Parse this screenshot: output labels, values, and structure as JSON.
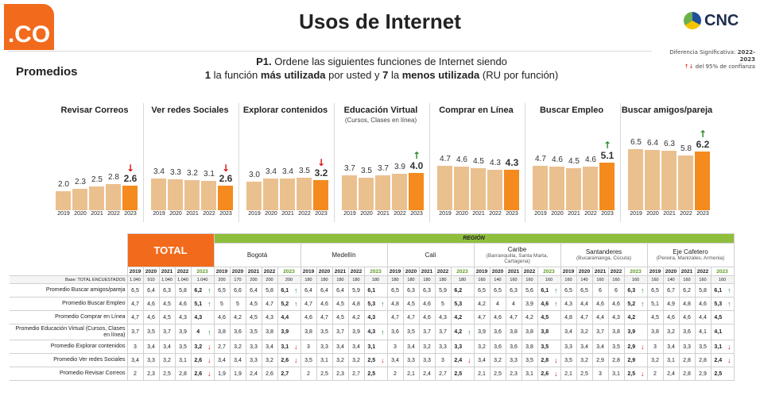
{
  "header": {
    "logo_text": ".CO",
    "title": "Usos de Internet",
    "brand": "CNC",
    "significance": {
      "line1": "Diferencia Significativa:",
      "years": "2022-2023",
      "arrows": "↑↓",
      "line2": "del 95% de confianza"
    },
    "subtitle": "Promedios",
    "question": {
      "num": "P1.",
      "q1": "Ordene las siguientes funciones de Internet siendo",
      "n1": "1",
      "t1": "la función",
      "b1": "más utilizada",
      "t2": "por usted y",
      "n7": "7",
      "t3": "la",
      "b2": "menos utilizada",
      "t4": "(RU por función)"
    }
  },
  "chart_data": {
    "type": "bar",
    "categories": [
      "2019",
      "2020",
      "2021",
      "2022",
      "2023"
    ],
    "panels": [
      {
        "title": "Revisar Correos",
        "subtitle": "",
        "values": [
          2.0,
          2.3,
          2.5,
          2.8,
          2.6
        ],
        "labels": [
          "2.0",
          "2.3",
          "2.5",
          "2.8",
          "2.6"
        ],
        "trend": "down"
      },
      {
        "title": "Ver redes Sociales",
        "subtitle": "",
        "values": [
          3.4,
          3.3,
          3.2,
          3.1,
          2.6
        ],
        "labels": [
          "3.4",
          "3.3",
          "3.2",
          "3.1",
          "2.6"
        ],
        "trend": "down"
      },
      {
        "title": "Explorar contenidos",
        "subtitle": "",
        "values": [
          3.0,
          3.4,
          3.4,
          3.5,
          3.2
        ],
        "labels": [
          "3.0",
          "3.4",
          "3.4",
          "3.5",
          "3.2"
        ],
        "trend": "down"
      },
      {
        "title": "Educación Virtual",
        "subtitle": "(Cursos, Clases en línea)",
        "values": [
          3.7,
          3.5,
          3.7,
          3.9,
          4.0
        ],
        "labels": [
          "3.7",
          "3.5",
          "3.7",
          "3.9",
          "4.0"
        ],
        "trend": "up"
      },
      {
        "title": "Comprar en Línea",
        "subtitle": "",
        "values": [
          4.7,
          4.6,
          4.5,
          4.3,
          4.3
        ],
        "labels": [
          "4.7",
          "4.6",
          "4.5",
          "4.3",
          "4.3"
        ],
        "trend": ""
      },
      {
        "title": "Buscar Empleo",
        "subtitle": "",
        "values": [
          4.7,
          4.6,
          4.5,
          4.6,
          5.1
        ],
        "labels": [
          "4.7",
          "4.6",
          "4.5",
          "4.6",
          "5.1"
        ],
        "trend": "up"
      },
      {
        "title": "Buscar amigos/pareja",
        "subtitle": "",
        "values": [
          6.5,
          6.4,
          6.3,
          5.8,
          6.2
        ],
        "labels": [
          "6.5",
          "6.4",
          "6.3",
          "5.8",
          "6.2"
        ],
        "trend": "up"
      }
    ],
    "ylim": [
      0,
      7
    ],
    "colors": {
      "past": "#ebc08f",
      "current": "#f58a1f"
    }
  },
  "table": {
    "total_label": "TOTAL",
    "region_label": "REGIÓN",
    "groups": [
      {
        "name": "Bogotá",
        "sub": ""
      },
      {
        "name": "Medellín",
        "sub": ""
      },
      {
        "name": "Cali",
        "sub": ""
      },
      {
        "name": "Caribe",
        "sub": "(Barranquilla, Santa Marta, Cartagena)"
      },
      {
        "name": "Santanderes",
        "sub": "(Bucaramanga, Cúcuta)"
      },
      {
        "name": "Eje Cafetero",
        "sub": "(Pereira, Manizales, Armenia)"
      }
    ],
    "years": [
      "2019",
      "2020",
      "2021",
      "2022",
      "2023"
    ],
    "base_label": "Base: TOTAL ENCUESTADOS",
    "base": [
      [
        "1.040",
        "910",
        "1.040",
        "1.040",
        "1.040"
      ],
      [
        "200",
        "170",
        "200",
        "200",
        "200"
      ],
      [
        "180",
        "180",
        "180",
        "180",
        "180"
      ],
      [
        "180",
        "180",
        "180",
        "180",
        "180"
      ],
      [
        "160",
        "140",
        "160",
        "160",
        "160"
      ],
      [
        "160",
        "140",
        "160",
        "160",
        "160"
      ],
      [
        "160",
        "140",
        "160",
        "160",
        "160"
      ]
    ],
    "rows": [
      {
        "label": "Promedio Buscar amigos/pareja",
        "cells": [
          {
            "v": [
              "6,5",
              "6,4",
              "6,3",
              "5,8",
              "6,2"
            ],
            "t": "up"
          },
          {
            "v": [
              "6,5",
              "6,6",
              "6,4",
              "5,8",
              "6,1"
            ],
            "t": "up"
          },
          {
            "v": [
              "6,4",
              "6,4",
              "6,4",
              "5,9",
              "6,1"
            ],
            "t": ""
          },
          {
            "v": [
              "6,5",
              "6,3",
              "6,3",
              "5,9",
              "6,2"
            ],
            "t": ""
          },
          {
            "v": [
              "6,5",
              "6,5",
              "6,3",
              "5,6",
              "6,1"
            ],
            "t": "up"
          },
          {
            "v": [
              "6,5",
              "6,5",
              "6",
              "6",
              "6,3"
            ],
            "t": "up"
          },
          {
            "v": [
              "6,5",
              "6,7",
              "6,2",
              "5,8",
              "6,1"
            ],
            "t": "up"
          }
        ]
      },
      {
        "label": "Promedio Buscar Empleo",
        "cells": [
          {
            "v": [
              "4,7",
              "4,6",
              "4,5",
              "4,6",
              "5,1"
            ],
            "t": "up"
          },
          {
            "v": [
              "5",
              "5",
              "4,5",
              "4,7",
              "5,2"
            ],
            "t": "up"
          },
          {
            "v": [
              "4,7",
              "4,6",
              "4,5",
              "4,8",
              "5,3"
            ],
            "t": "up"
          },
          {
            "v": [
              "4,8",
              "4,5",
              "4,6",
              "5",
              "5,3"
            ],
            "t": ""
          },
          {
            "v": [
              "4,2",
              "4",
              "4",
              "3,9",
              "4,6"
            ],
            "t": "up"
          },
          {
            "v": [
              "4,3",
              "4,4",
              "4,6",
              "4,6",
              "5,2"
            ],
            "t": "up"
          },
          {
            "v": [
              "5,1",
              "4,9",
              "4,8",
              "4,6",
              "5,3"
            ],
            "t": "up"
          }
        ]
      },
      {
        "label": "Promedio Comprar en Línea",
        "cells": [
          {
            "v": [
              "4,7",
              "4,6",
              "4,5",
              "4,3",
              "4,3"
            ],
            "t": ""
          },
          {
            "v": [
              "4,6",
              "4,2",
              "4,5",
              "4,3",
              "4,4"
            ],
            "t": ""
          },
          {
            "v": [
              "4,6",
              "4,7",
              "4,5",
              "4,2",
              "4,3"
            ],
            "t": ""
          },
          {
            "v": [
              "4,7",
              "4,7",
              "4,6",
              "4,3",
              "4,2"
            ],
            "t": ""
          },
          {
            "v": [
              "4,7",
              "4,6",
              "4,7",
              "4,2",
              "4,5"
            ],
            "t": ""
          },
          {
            "v": [
              "4,8",
              "4,7",
              "4,4",
              "4,3",
              "4,2"
            ],
            "t": ""
          },
          {
            "v": [
              "4,5",
              "4,6",
              "4,6",
              "4,4",
              "4,5"
            ],
            "t": ""
          }
        ]
      },
      {
        "label": "Promedio Educación Virtual (Cursos, Clases en línea)",
        "tall": true,
        "cells": [
          {
            "v": [
              "3,7",
              "3,5",
              "3,7",
              "3,9",
              "4"
            ],
            "t": "up"
          },
          {
            "v": [
              "3,8",
              "3,6",
              "3,5",
              "3,8",
              "3,9"
            ],
            "t": ""
          },
          {
            "v": [
              "3,8",
              "3,5",
              "3,7",
              "3,9",
              "4,3"
            ],
            "t": "up"
          },
          {
            "v": [
              "3,6",
              "3,5",
              "3,7",
              "3,7",
              "4,2"
            ],
            "t": "up"
          },
          {
            "v": [
              "3,9",
              "3,6",
              "3,8",
              "3,8",
              "3,8"
            ],
            "t": ""
          },
          {
            "v": [
              "3,4",
              "3,2",
              "3,7",
              "3,8",
              "3,9"
            ],
            "t": ""
          },
          {
            "v": [
              "3,8",
              "3,2",
              "3,6",
              "4,1",
              "4,1"
            ],
            "t": ""
          }
        ]
      },
      {
        "label": "Promedio Explorar contenidos",
        "cells": [
          {
            "v": [
              "3",
              "3,4",
              "3,4",
              "3,5",
              "3,2"
            ],
            "t": "down"
          },
          {
            "v": [
              "2,7",
              "3,2",
              "3,3",
              "3,4",
              "3,1"
            ],
            "t": "down"
          },
          {
            "v": [
              "3",
              "3,3",
              "3,4",
              "3,4",
              "3,1"
            ],
            "t": ""
          },
          {
            "v": [
              "3",
              "3,4",
              "3,2",
              "3,3",
              "3,3"
            ],
            "t": ""
          },
          {
            "v": [
              "3,2",
              "3,6",
              "3,6",
              "3,8",
              "3,5"
            ],
            "t": ""
          },
          {
            "v": [
              "3,3",
              "3,4",
              "3,4",
              "3,5",
              "2,9"
            ],
            "t": "down"
          },
          {
            "v": [
              "3",
              "3,4",
              "3,3",
              "3,5",
              "3,1"
            ],
            "t": "down"
          }
        ]
      },
      {
        "label": "Promedio Ver redes Sociales",
        "cells": [
          {
            "v": [
              "3,4",
              "3,3",
              "3,2",
              "3,1",
              "2,6"
            ],
            "t": "down"
          },
          {
            "v": [
              "3,4",
              "3,4",
              "3,3",
              "3,2",
              "2,6"
            ],
            "t": "down"
          },
          {
            "v": [
              "3,5",
              "3,1",
              "3,2",
              "3,2",
              "2,5"
            ],
            "t": "down"
          },
          {
            "v": [
              "3,4",
              "3,3",
              "3,3",
              "3",
              "2,4"
            ],
            "t": "down"
          },
          {
            "v": [
              "3,4",
              "3,2",
              "3,3",
              "3,5",
              "2,8"
            ],
            "t": "down"
          },
          {
            "v": [
              "3,5",
              "3,2",
              "2,9",
              "2,8",
              "2,9"
            ],
            "t": ""
          },
          {
            "v": [
              "3,2",
              "3,1",
              "2,8",
              "2,8",
              "2,4"
            ],
            "t": "down"
          }
        ]
      },
      {
        "label": "Promedio Revisar Correos",
        "cells": [
          {
            "v": [
              "2",
              "2,3",
              "2,5",
              "2,8",
              "2,6"
            ],
            "t": "down"
          },
          {
            "v": [
              "1,9",
              "1,9",
              "2,4",
              "2,6",
              "2,7"
            ],
            "t": ""
          },
          {
            "v": [
              "2",
              "2,5",
              "2,3",
              "2,7",
              "2,5"
            ],
            "t": ""
          },
          {
            "v": [
              "2",
              "2,1",
              "2,4",
              "2,7",
              "2,5"
            ],
            "t": ""
          },
          {
            "v": [
              "2,1",
              "2,5",
              "2,3",
              "3,1",
              "2,6"
            ],
            "t": "down"
          },
          {
            "v": [
              "2,1",
              "2,5",
              "3",
              "3,1",
              "2,5"
            ],
            "t": "down"
          },
          {
            "v": [
              "2",
              "2,4",
              "2,8",
              "2,9",
              "2,5"
            ],
            "t": ""
          }
        ]
      }
    ]
  }
}
